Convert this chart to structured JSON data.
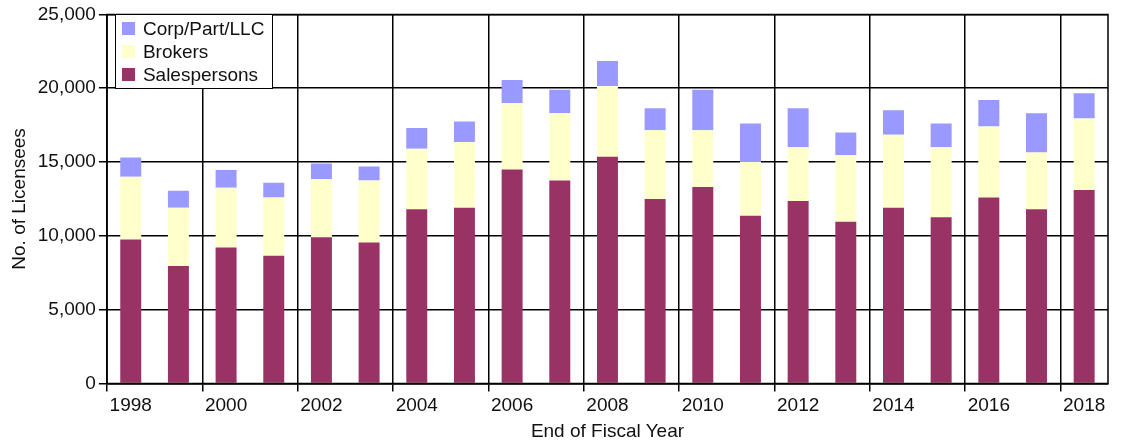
{
  "chart_data": {
    "type": "bar",
    "stacked": true,
    "xlabel": "End of Fiscal Year",
    "ylabel": "No. of Licensees",
    "categories": [
      "1998",
      null,
      "2000",
      null,
      "2002",
      null,
      "2004",
      null,
      "2006",
      null,
      "2008",
      null,
      "2010",
      null,
      "2012",
      null,
      "2014",
      null,
      "2016",
      null,
      "2018"
    ],
    "series": [
      {
        "name": "Salespersons",
        "color": "#993366",
        "values": [
          9750,
          7950,
          9200,
          8650,
          9900,
          9550,
          11800,
          11900,
          14500,
          13750,
          15350,
          12500,
          13300,
          11350,
          12350,
          10950,
          11900,
          11250,
          12600,
          11800,
          13100
        ]
      },
      {
        "name": "Brokers",
        "color": "#ffffcc",
        "values": [
          4250,
          3950,
          4050,
          3950,
          3950,
          4200,
          4100,
          4450,
          4500,
          4550,
          4800,
          4650,
          3850,
          3650,
          3650,
          4500,
          4950,
          4750,
          4800,
          3850,
          4850
        ]
      },
      {
        "name": "Corp/Part/LLC",
        "color": "#9999ff",
        "values": [
          1300,
          1150,
          1200,
          1000,
          1050,
          950,
          1400,
          1400,
          1550,
          1600,
          1700,
          1500,
          2750,
          2600,
          2650,
          1550,
          1650,
          1600,
          1800,
          2650,
          1700
        ]
      }
    ],
    "ylim": [
      0,
      25000
    ],
    "yticks": [
      {
        "value": 0,
        "label": "0"
      },
      {
        "value": 5000,
        "label": "5,000"
      },
      {
        "value": 10000,
        "label": "10,000"
      },
      {
        "value": 15000,
        "label": "15,000"
      },
      {
        "value": 20000,
        "label": "20,000"
      },
      {
        "value": 25000,
        "label": "25,000"
      }
    ],
    "grid": true,
    "legend": "top left"
  }
}
